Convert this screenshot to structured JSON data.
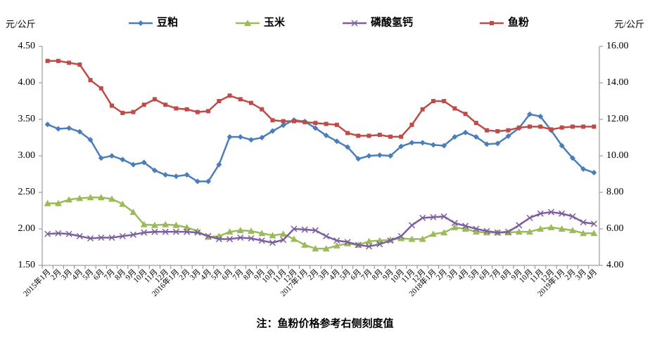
{
  "chart_data": {
    "type": "line",
    "note": "注：鱼粉价格参考右侧刻度值",
    "ylabel": "元/公斤",
    "y2label": "元/公斤",
    "legend": "top",
    "categories": [
      "2015年1月",
      "2月",
      "3月",
      "4月",
      "5月",
      "6月",
      "7月",
      "8月",
      "9月",
      "10月",
      "11月",
      "12月",
      "2016年1月",
      "2月",
      "3月",
      "4月",
      "5月",
      "6月",
      "7月",
      "8月",
      "9月",
      "10月",
      "11月",
      "12月",
      "2017年1月",
      "2月",
      "3月",
      "4月",
      "5月",
      "6月",
      "7月",
      "8月",
      "9月",
      "10月",
      "11月",
      "12月",
      "2018年1月",
      "2月",
      "3月",
      "4月",
      "5月",
      "6月",
      "7月",
      "8月",
      "9月",
      "10月",
      "11月",
      "12月",
      "2019年1月",
      "2月",
      "3月",
      "4月"
    ],
    "ylim": [
      1.5,
      4.5
    ],
    "yticks": [
      {
        "value": 1.5,
        "label": "1.50"
      },
      {
        "value": 2,
        "label": "2.00"
      },
      {
        "value": 2.5,
        "label": "2.50"
      },
      {
        "value": 3,
        "label": "3.00"
      },
      {
        "value": 3.5,
        "label": "3.50"
      },
      {
        "value": 4,
        "label": "4.00"
      },
      {
        "value": 4.5,
        "label": "4.50"
      }
    ],
    "y2lim": [
      4,
      16
    ],
    "y2ticks": [
      {
        "value": 4,
        "label": "4.00"
      },
      {
        "value": 6,
        "label": "6.00"
      },
      {
        "value": 8,
        "label": "8.00"
      },
      {
        "value": 10,
        "label": "10.00"
      },
      {
        "value": 12,
        "label": "12.00"
      },
      {
        "value": 14,
        "label": "14.00"
      },
      {
        "value": 16,
        "label": "16.00"
      }
    ],
    "grid": false,
    "series": [
      {
        "name": "豆粕",
        "color": "#4a7ebb",
        "marker": "diamond",
        "values": [
          3.43,
          3.37,
          3.38,
          3.33,
          3.22,
          2.97,
          3.0,
          2.95,
          2.88,
          2.91,
          2.8,
          2.74,
          2.72,
          2.74,
          2.65,
          2.65,
          2.88,
          3.26,
          3.26,
          3.22,
          3.25,
          3.34,
          3.42,
          3.49,
          3.47,
          3.38,
          3.28,
          3.2,
          3.12,
          2.96,
          3.0,
          3.01,
          3.0,
          3.13,
          3.18,
          3.18,
          3.15,
          3.14,
          3.26,
          3.32,
          3.26,
          3.16,
          3.17,
          3.27,
          3.38,
          3.57,
          3.54,
          3.35,
          3.14,
          2.97,
          2.82,
          2.77
        ]
      },
      {
        "name": "玉米",
        "color": "#9bbb59",
        "marker": "triangle",
        "values": [
          2.35,
          2.35,
          2.4,
          2.42,
          2.43,
          2.43,
          2.41,
          2.34,
          2.23,
          2.06,
          2.05,
          2.06,
          2.05,
          2.02,
          1.97,
          1.89,
          1.9,
          1.96,
          1.98,
          1.97,
          1.94,
          1.91,
          1.93,
          1.86,
          1.78,
          1.73,
          1.73,
          1.77,
          1.8,
          1.78,
          1.83,
          1.84,
          1.85,
          1.87,
          1.86,
          1.86,
          1.93,
          1.95,
          2.02,
          2.0,
          1.96,
          1.95,
          1.95,
          1.95,
          1.96,
          1.96,
          2.0,
          2.02,
          2.0,
          1.98,
          1.94,
          1.94
        ]
      },
      {
        "name": "磷酸氢钙",
        "color": "#7d5fa0",
        "marker": "x",
        "values": [
          1.93,
          1.94,
          1.93,
          1.9,
          1.87,
          1.88,
          1.88,
          1.9,
          1.92,
          1.95,
          1.96,
          1.96,
          1.96,
          1.96,
          1.95,
          1.9,
          1.86,
          1.86,
          1.88,
          1.87,
          1.84,
          1.81,
          1.85,
          2.0,
          1.99,
          1.98,
          1.9,
          1.84,
          1.82,
          1.78,
          1.76,
          1.79,
          1.84,
          1.9,
          2.05,
          2.15,
          2.16,
          2.17,
          2.08,
          2.04,
          2.0,
          1.97,
          1.95,
          1.96,
          2.05,
          2.15,
          2.21,
          2.23,
          2.21,
          2.17,
          2.09,
          2.07
        ]
      },
      {
        "name": "鱼粉",
        "color": "#be4b48",
        "marker": "square",
        "axis": "y2",
        "values": [
          15.2,
          15.2,
          15.1,
          15.0,
          14.15,
          13.7,
          12.75,
          12.35,
          12.4,
          12.8,
          13.1,
          12.8,
          12.6,
          12.55,
          12.4,
          12.45,
          13.0,
          13.3,
          13.1,
          12.9,
          12.55,
          11.95,
          11.9,
          11.9,
          11.85,
          11.8,
          11.75,
          11.7,
          11.25,
          11.1,
          11.1,
          11.15,
          11.05,
          11.05,
          11.7,
          12.55,
          13.0,
          13.0,
          12.6,
          12.3,
          11.8,
          11.4,
          11.35,
          11.4,
          11.55,
          11.6,
          11.6,
          11.45,
          11.55,
          11.6,
          11.6,
          11.6
        ]
      }
    ]
  }
}
